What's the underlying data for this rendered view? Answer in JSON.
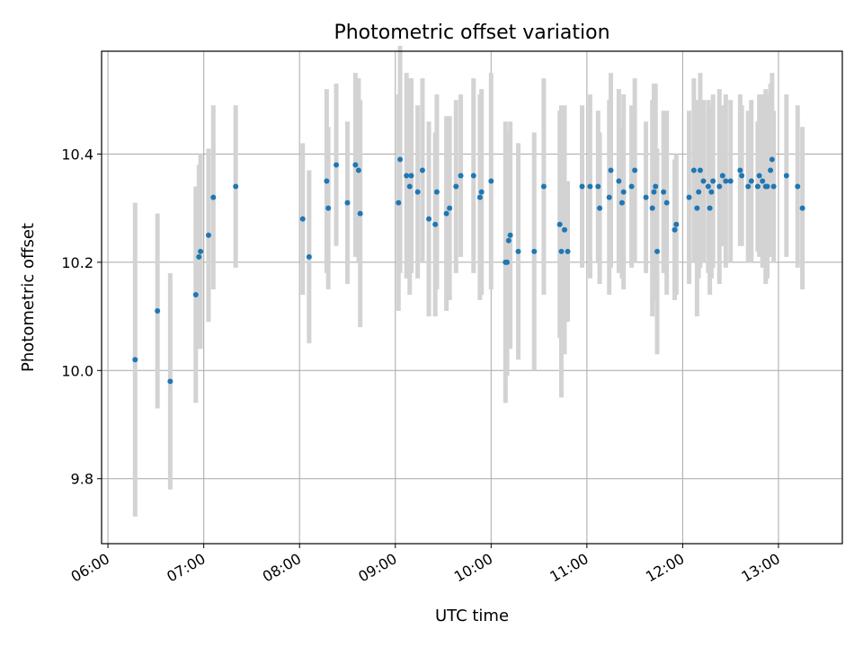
{
  "chart_data": {
    "type": "scatter",
    "title": "Photometric offset variation",
    "xlabel": "UTC time",
    "ylabel": "Photometric offset",
    "x_ticks": [
      "06:00",
      "07:00",
      "08:00",
      "09:00",
      "10:00",
      "11:00",
      "12:00",
      "13:00"
    ],
    "y_ticks": [
      "9.8",
      "10.0",
      "10.2",
      "10.4"
    ],
    "xlim": [
      "05:56",
      "13:40"
    ],
    "ylim": [
      9.68,
      10.59
    ],
    "grid": true,
    "colors": {
      "point": "#1f77b4",
      "errorbar": "#d3d3d3",
      "grid": "#b0b0b0"
    },
    "points": [
      [
        "06:17",
        10.02,
        0.29
      ],
      [
        "06:31",
        10.11,
        0.18
      ],
      [
        "06:39",
        9.98,
        0.2
      ],
      [
        "06:55",
        10.14,
        0.2
      ],
      [
        "06:57",
        10.21,
        0.17
      ],
      [
        "06:58",
        10.22,
        0.18
      ],
      [
        "07:03",
        10.25,
        0.16
      ],
      [
        "07:06",
        10.32,
        0.17
      ],
      [
        "07:20",
        10.34,
        0.15
      ],
      [
        "08:02",
        10.28,
        0.14
      ],
      [
        "08:06",
        10.21,
        0.16
      ],
      [
        "08:17",
        10.35,
        0.17
      ],
      [
        "08:18",
        10.3,
        0.15
      ],
      [
        "08:23",
        10.38,
        0.15
      ],
      [
        "08:30",
        10.31,
        0.15
      ],
      [
        "08:35",
        10.38,
        0.17
      ],
      [
        "08:37",
        10.37,
        0.17
      ],
      [
        "08:38",
        10.29,
        0.21
      ],
      [
        "09:02",
        10.31,
        0.2
      ],
      [
        "09:03",
        10.39,
        0.21
      ],
      [
        "09:07",
        10.36,
        0.19
      ],
      [
        "09:09",
        10.34,
        0.2
      ],
      [
        "09:10",
        10.36,
        0.18
      ],
      [
        "09:14",
        10.33,
        0.16
      ],
      [
        "09:17",
        10.37,
        0.17
      ],
      [
        "09:21",
        10.28,
        0.18
      ],
      [
        "09:25",
        10.27,
        0.17
      ],
      [
        "09:26",
        10.33,
        0.18
      ],
      [
        "09:32",
        10.29,
        0.18
      ],
      [
        "09:34",
        10.3,
        0.17
      ],
      [
        "09:38",
        10.34,
        0.16
      ],
      [
        "09:41",
        10.36,
        0.15
      ],
      [
        "09:49",
        10.36,
        0.18
      ],
      [
        "09:53",
        10.32,
        0.19
      ],
      [
        "09:54",
        10.33,
        0.19
      ],
      [
        "10:00",
        10.35,
        0.2
      ],
      [
        "10:09",
        10.2,
        0.26
      ],
      [
        "10:10",
        10.2,
        0.21
      ],
      [
        "10:11",
        10.24,
        0.2
      ],
      [
        "10:12",
        10.25,
        0.21
      ],
      [
        "10:17",
        10.22,
        0.2
      ],
      [
        "10:27",
        10.22,
        0.22
      ],
      [
        "10:33",
        10.34,
        0.2
      ],
      [
        "10:43",
        10.27,
        0.21
      ],
      [
        "10:44",
        10.22,
        0.27
      ],
      [
        "10:46",
        10.26,
        0.23
      ],
      [
        "10:48",
        10.22,
        0.13
      ],
      [
        "10:57",
        10.34,
        0.15
      ],
      [
        "11:02",
        10.34,
        0.17
      ],
      [
        "11:07",
        10.34,
        0.14
      ],
      [
        "11:08",
        10.3,
        0.14
      ],
      [
        "11:14",
        10.32,
        0.18
      ],
      [
        "11:15",
        10.37,
        0.18
      ],
      [
        "11:20",
        10.35,
        0.17
      ],
      [
        "11:22",
        10.31,
        0.14
      ],
      [
        "11:23",
        10.33,
        0.18
      ],
      [
        "11:28",
        10.34,
        0.15
      ],
      [
        "11:30",
        10.37,
        0.17
      ],
      [
        "11:37",
        10.32,
        0.14
      ],
      [
        "11:41",
        10.3,
        0.2
      ],
      [
        "11:42",
        10.33,
        0.2
      ],
      [
        "11:43",
        10.34,
        0.19
      ],
      [
        "11:44",
        10.22,
        0.19
      ],
      [
        "11:48",
        10.33,
        0.15
      ],
      [
        "11:50",
        10.31,
        0.17
      ],
      [
        "11:55",
        10.26,
        0.13
      ],
      [
        "11:56",
        10.27,
        0.13
      ],
      [
        "12:04",
        10.32,
        0.16
      ],
      [
        "12:07",
        10.37,
        0.17
      ],
      [
        "12:09",
        10.3,
        0.2
      ],
      [
        "12:10",
        10.33,
        0.16
      ],
      [
        "12:11",
        10.37,
        0.18
      ],
      [
        "12:13",
        10.35,
        0.15
      ],
      [
        "12:16",
        10.34,
        0.16
      ],
      [
        "12:17",
        10.3,
        0.16
      ],
      [
        "12:18",
        10.33,
        0.16
      ],
      [
        "12:19",
        10.35,
        0.16
      ],
      [
        "12:23",
        10.34,
        0.18
      ],
      [
        "12:25",
        10.36,
        0.13
      ],
      [
        "12:27",
        10.35,
        0.16
      ],
      [
        "12:30",
        10.35,
        0.15
      ],
      [
        "12:36",
        10.37,
        0.14
      ],
      [
        "12:37",
        10.36,
        0.13
      ],
      [
        "12:41",
        10.34,
        0.14
      ],
      [
        "12:43",
        10.35,
        0.15
      ],
      [
        "12:47",
        10.34,
        0.12
      ],
      [
        "12:48",
        10.36,
        0.15
      ],
      [
        "12:50",
        10.35,
        0.16
      ],
      [
        "12:52",
        10.34,
        0.18
      ],
      [
        "12:53",
        10.34,
        0.17
      ],
      [
        "12:55",
        10.37,
        0.16
      ],
      [
        "12:56",
        10.39,
        0.16
      ],
      [
        "12:57",
        10.34,
        0.14
      ],
      [
        "13:05",
        10.36,
        0.15
      ],
      [
        "13:12",
        10.34,
        0.15
      ],
      [
        "13:15",
        10.3,
        0.15
      ]
    ]
  }
}
